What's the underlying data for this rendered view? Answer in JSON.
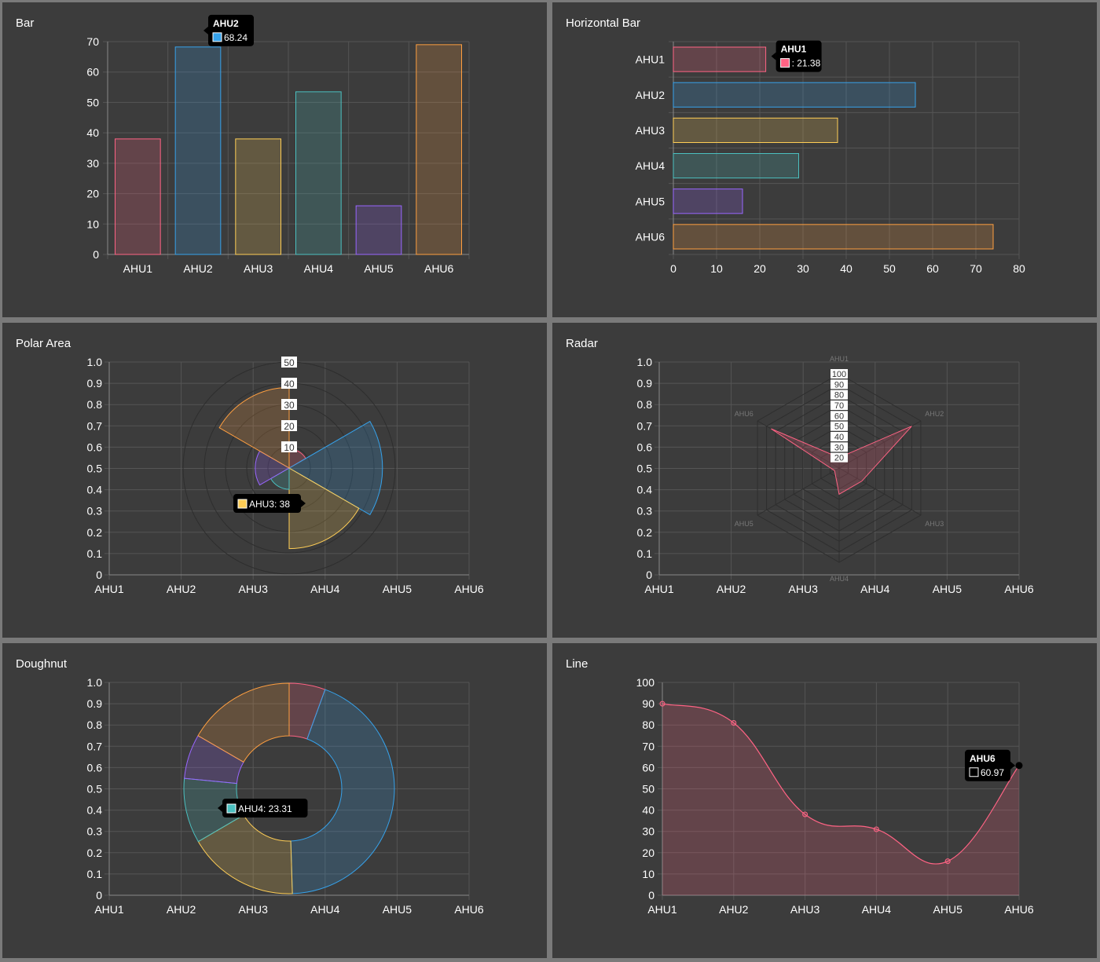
{
  "categories": [
    "AHU1",
    "AHU2",
    "AHU3",
    "AHU4",
    "AHU5",
    "AHU6"
  ],
  "colors": {
    "pink": "#ff6384",
    "blue": "#36a2eb",
    "yellow": "#ffce56",
    "teal": "#4bc0c0",
    "purple": "#9966ff",
    "orange": "#ff9f40",
    "panel_bg": "#3c3c3c",
    "grid": "#555555",
    "tick": "#ffffff"
  },
  "chart_data": [
    {
      "id": "bar",
      "type": "bar",
      "title": "Bar",
      "categories": [
        "AHU1",
        "AHU2",
        "AHU3",
        "AHU4",
        "AHU5",
        "AHU6"
      ],
      "values": [
        38,
        68.24,
        38,
        53.5,
        16,
        69
      ],
      "ylim": [
        0,
        70
      ],
      "yticks": [
        "0",
        "10",
        "20",
        "30",
        "40",
        "50",
        "60",
        "70"
      ],
      "tooltip": {
        "title": "AHU2",
        "label": "68.24",
        "index": 1
      }
    },
    {
      "id": "hbar",
      "type": "bar",
      "orientation": "horizontal",
      "title": "Horizontal Bar",
      "categories": [
        "AHU1",
        "AHU2",
        "AHU3",
        "AHU4",
        "AHU5",
        "AHU6"
      ],
      "values": [
        21.38,
        56,
        38,
        29,
        16,
        74
      ],
      "xlim": [
        0,
        80
      ],
      "xticks": [
        "0",
        "10",
        "20",
        "30",
        "40",
        "50",
        "60",
        "70",
        "80"
      ],
      "tooltip": {
        "title": "AHU1",
        "label": ": 21.38",
        "index": 0
      }
    },
    {
      "id": "polar",
      "type": "polarArea",
      "title": "Polar Area",
      "categories": [
        "AHU1",
        "AHU2",
        "AHU3",
        "AHU4",
        "AHU5",
        "AHU6"
      ],
      "values": [
        9,
        44,
        38,
        10,
        16,
        38
      ],
      "rlim": [
        0,
        50
      ],
      "rticks": [
        "10",
        "20",
        "30",
        "40",
        "50"
      ],
      "yticks": [
        "0",
        "0.1",
        "0.2",
        "0.3",
        "0.4",
        "0.5",
        "0.6",
        "0.7",
        "0.8",
        "0.9",
        "1.0"
      ],
      "tooltip": {
        "label": "AHU3: 38",
        "index": 2
      }
    },
    {
      "id": "radar",
      "type": "radar",
      "title": "Radar",
      "categories": [
        "AHU1",
        "AHU2",
        "AHU3",
        "AHU4",
        "AHU5",
        "AHU6"
      ],
      "values": [
        20,
        90,
        35,
        35,
        15,
        85
      ],
      "rlim": [
        10,
        100
      ],
      "rticks": [
        "20",
        "30",
        "40",
        "50",
        "60",
        "70",
        "80",
        "90",
        "100"
      ],
      "yticks": [
        "0",
        "0.1",
        "0.2",
        "0.3",
        "0.4",
        "0.5",
        "0.6",
        "0.7",
        "0.8",
        "0.9",
        "1.0"
      ]
    },
    {
      "id": "dough",
      "type": "doughnut",
      "title": "Doughnut",
      "categories": [
        "AHU1",
        "AHU2",
        "AHU3",
        "AHU4",
        "AHU5",
        "AHU6"
      ],
      "values": [
        13,
        103,
        40,
        23.31,
        16,
        39
      ],
      "yticks": [
        "0",
        "0.1",
        "0.2",
        "0.3",
        "0.4",
        "0.5",
        "0.6",
        "0.7",
        "0.8",
        "0.9",
        "1.0"
      ],
      "tooltip": {
        "label": "AHU4: 23.31",
        "index": 3
      }
    },
    {
      "id": "line",
      "type": "line",
      "title": "Line",
      "categories": [
        "AHU1",
        "AHU2",
        "AHU3",
        "AHU4",
        "AHU5",
        "AHU6"
      ],
      "values": [
        90,
        81,
        38,
        31,
        16,
        60.97
      ],
      "ylim": [
        0,
        100
      ],
      "yticks": [
        "0",
        "10",
        "20",
        "30",
        "40",
        "50",
        "60",
        "70",
        "80",
        "90",
        "100"
      ],
      "tooltip": {
        "title": "AHU6",
        "label": "60.97",
        "index": 5
      }
    }
  ]
}
